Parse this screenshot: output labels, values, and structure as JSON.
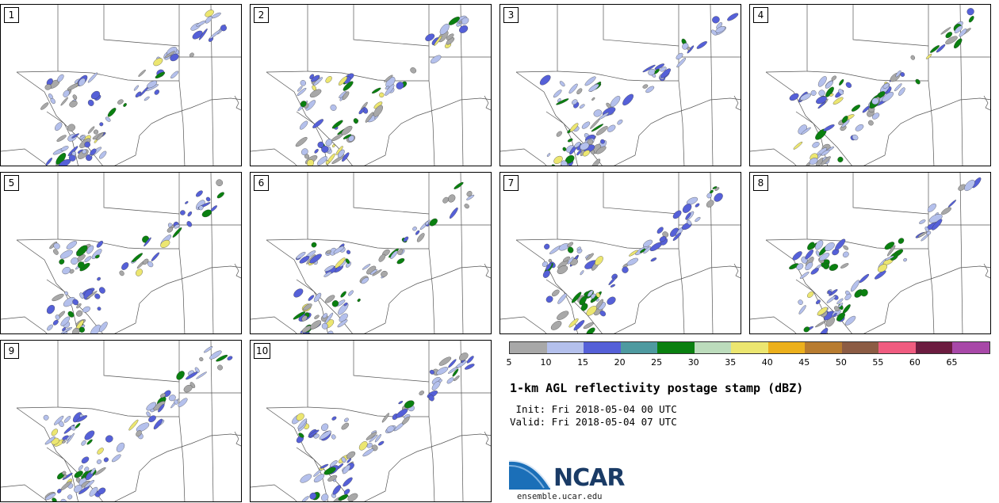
{
  "panels": [
    {
      "number": "1"
    },
    {
      "number": "2"
    },
    {
      "number": "3"
    },
    {
      "number": "4"
    },
    {
      "number": "5"
    },
    {
      "number": "6"
    },
    {
      "number": "7"
    },
    {
      "number": "8"
    },
    {
      "number": "9"
    },
    {
      "number": "10"
    }
  ],
  "colorbar": {
    "colors": [
      "#a8a8a8",
      "#b4c0ec",
      "#5560d8",
      "#4e9aa0",
      "#0a8010",
      "#bcdcbc",
      "#ece670",
      "#ecb01c",
      "#b87c30",
      "#8c5c44",
      "#f05c80",
      "#6c1c40",
      "#a848a8"
    ],
    "tick_labels": [
      "5",
      "10",
      "15",
      "20",
      "25",
      "30",
      "35",
      "40",
      "45",
      "50",
      "55",
      "60",
      "65"
    ]
  },
  "title": "1-km AGL reflectivity postage stamp (dBZ)",
  "init_line": " Init: Fri 2018-05-04 00 UTC",
  "valid_line": "Valid: Fri 2018-05-04 07 UTC",
  "logo": {
    "text": "NCAR",
    "url": "ensemble.ucar.edu",
    "colors": {
      "blue": "#1b6fb8",
      "dark": "#1a3b66"
    }
  }
}
